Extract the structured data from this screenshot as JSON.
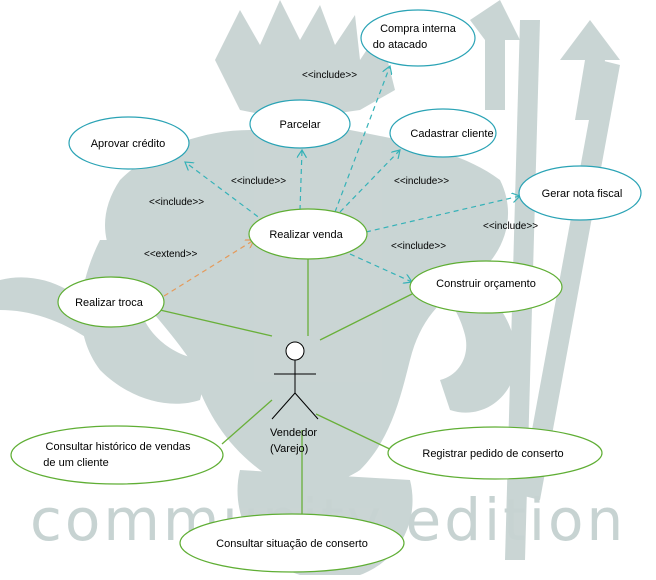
{
  "colors": {
    "ellipse_stroke": "#5fae34",
    "ellipse_stroke_blue": "#2aa3b5",
    "association": "#69b03a",
    "include_dependency": "#35b2b8",
    "extend_dependency": "#e59a5a",
    "watermark": "#c7d3d2"
  },
  "watermark": {
    "text": "community edition"
  },
  "actor": {
    "label_line1": "Vendedor",
    "label_line2": "(Varejo)"
  },
  "use_cases": {
    "compra_interna": {
      "line1": "Compra interna",
      "line2": "do atacado"
    },
    "parcelar": "Parcelar",
    "cadastrar_cliente": "Cadastrar cliente",
    "aprovar_credito": "Aprovar crédito",
    "gerar_nota_fiscal": "Gerar nota fiscal",
    "realizar_venda": "Realizar venda",
    "construir_orcamento": "Construir orçamento",
    "realizar_troca": "Realizar troca",
    "consultar_historico": {
      "line1": "Consultar histórico de vendas",
      "line2": "de um  cliente"
    },
    "registrar_pedido": "Registrar pedido de conserto",
    "consultar_situacao": "Consultar situação de conserto"
  },
  "stereotypes": {
    "include_compra": "<<include>>",
    "include_parcelar": "<<include>>",
    "include_aprovar": "<<include>>",
    "include_cadastrar": "<<include>>",
    "include_gerar": "<<include>>",
    "include_orcamento": "<<include>>",
    "extend_troca": "<<extend>>"
  }
}
